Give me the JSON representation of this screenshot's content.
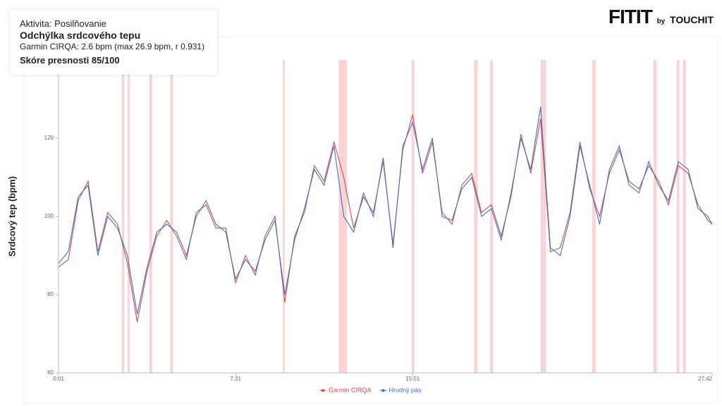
{
  "logo": {
    "brand": "FITIT",
    "by": "by",
    "maker": "TOUCHIT"
  },
  "info": {
    "activity": "Aktivita: Posilňovanie",
    "heading": "Odchýlka srdcového tepu",
    "detail": "Garmin CIRQA: 2.6 bpm  (max 26.9 bpm, r 0.931)",
    "score": "Skóre presnosti 85/100"
  },
  "chart_data": {
    "type": "line",
    "ylabel": "Srdcový tep (bpm)",
    "x": [
      1,
      26,
      51,
      76,
      101,
      126,
      151,
      176,
      201,
      226,
      251,
      276,
      301,
      326,
      351,
      376,
      401,
      426,
      451,
      476,
      501,
      526,
      551,
      576,
      601,
      626,
      651,
      676,
      701,
      726,
      751,
      776,
      801,
      826,
      851,
      876,
      901,
      926,
      951,
      976,
      1001,
      1026,
      1051,
      1076,
      1101,
      1126,
      1151,
      1176,
      1201,
      1226,
      1251,
      1276,
      1301,
      1326,
      1351,
      1376,
      1401,
      1426,
      1451,
      1476,
      1501,
      1526,
      1551,
      1576,
      1601,
      1626,
      1651,
      1662
    ],
    "xlim": [
      1,
      1662
    ],
    "xticks": [
      {
        "value": 1,
        "label": "0:01"
      },
      {
        "value": 451,
        "label": "7:31"
      },
      {
        "value": 901,
        "label": "15:01"
      },
      {
        "value": 1662,
        "label": "27:42"
      }
    ],
    "ylim": [
      60,
      140
    ],
    "yticks": [
      60,
      80,
      100,
      120
    ],
    "grid": false,
    "legend": "bottom",
    "highlight_color": "#f6b7b7",
    "highlight_intervals": [
      [
        162,
        168
      ],
      [
        177,
        182
      ],
      [
        232,
        239
      ],
      [
        285,
        292
      ],
      [
        571,
        576
      ],
      [
        713,
        734
      ],
      [
        898,
        905
      ],
      [
        1057,
        1066
      ],
      [
        1098,
        1105
      ],
      [
        1226,
        1240
      ],
      [
        1357,
        1366
      ],
      [
        1513,
        1521
      ],
      [
        1572,
        1579
      ],
      [
        1588,
        1595
      ]
    ],
    "series": [
      {
        "name": "Garmin CIRQA",
        "color": "#e0474c",
        "values": [
          87,
          89,
          104,
          109,
          91,
          101,
          98,
          88,
          73,
          86,
          95,
          99,
          95,
          89,
          101,
          103,
          97,
          97,
          83,
          90,
          85,
          95,
          100,
          78,
          95,
          101,
          113,
          109,
          119,
          110,
          97,
          105,
          101,
          114,
          93,
          117,
          126,
          111,
          119,
          101,
          98,
          108,
          111,
          101,
          103,
          95,
          105,
          121,
          111,
          125,
          91,
          92,
          101,
          119,
          107,
          100,
          111,
          117,
          109,
          107,
          113,
          109,
          103,
          113,
          111,
          103,
          99,
          98
        ]
      },
      {
        "name": "Hrudný pás",
        "color": "#3b73c8",
        "values": [
          88,
          91,
          105,
          108,
          90,
          100,
          97,
          90,
          75,
          87,
          96,
          98,
          96,
          90,
          100,
          104,
          98,
          96,
          84,
          89,
          86,
          94,
          99,
          80,
          94,
          102,
          112,
          108,
          118,
          100,
          96,
          106,
          100,
          115,
          92,
          118,
          124,
          112,
          120,
          100,
          99,
          107,
          110,
          100,
          102,
          94,
          106,
          120,
          112,
          128,
          92,
          90,
          100,
          118,
          108,
          98,
          112,
          118,
          108,
          106,
          114,
          108,
          104,
          114,
          112,
          102,
          100,
          98
        ]
      }
    ]
  }
}
